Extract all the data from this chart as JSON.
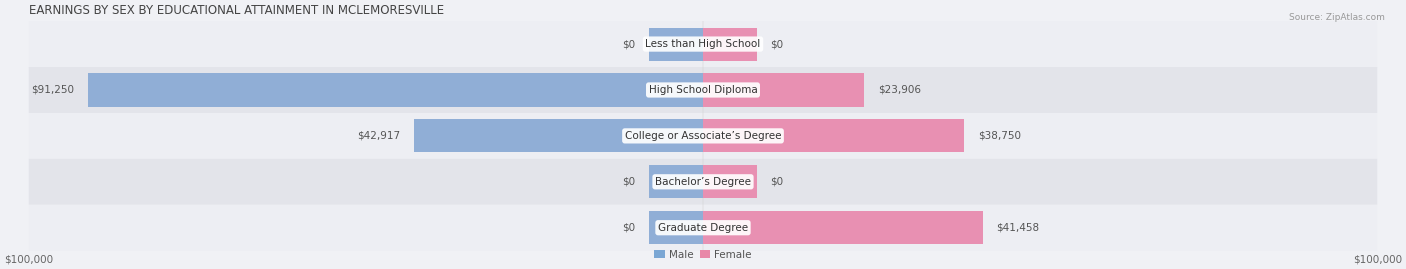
{
  "title": "EARNINGS BY SEX BY EDUCATIONAL ATTAINMENT IN MCLEMORESVILLE",
  "source": "Source: ZipAtlas.com",
  "categories": [
    "Less than High School",
    "High School Diploma",
    "College or Associate’s Degree",
    "Bachelor’s Degree",
    "Graduate Degree"
  ],
  "male_values": [
    0,
    91250,
    42917,
    0,
    0
  ],
  "female_values": [
    0,
    23906,
    38750,
    0,
    41458
  ],
  "male_labels": [
    "$0",
    "$91,250",
    "$42,917",
    "$0",
    "$0"
  ],
  "female_labels": [
    "$0",
    "$23,906",
    "$38,750",
    "$0",
    "$41,458"
  ],
  "male_color": "#90aed6",
  "female_color": "#e890b2",
  "male_color_legend": "#7ba7d4",
  "female_color_legend": "#e888a8",
  "row_colors": [
    "#edeef3",
    "#e3e4ea",
    "#edeef3",
    "#e3e4ea",
    "#edeef3"
  ],
  "max_value": 100000,
  "zero_stub": 8000,
  "title_fontsize": 8.5,
  "label_fontsize": 7.5,
  "cat_fontsize": 7.5,
  "tick_fontsize": 7.5,
  "background_color": "#f0f1f5",
  "left_axis_label": "$100,000",
  "right_axis_label": "$100,000"
}
